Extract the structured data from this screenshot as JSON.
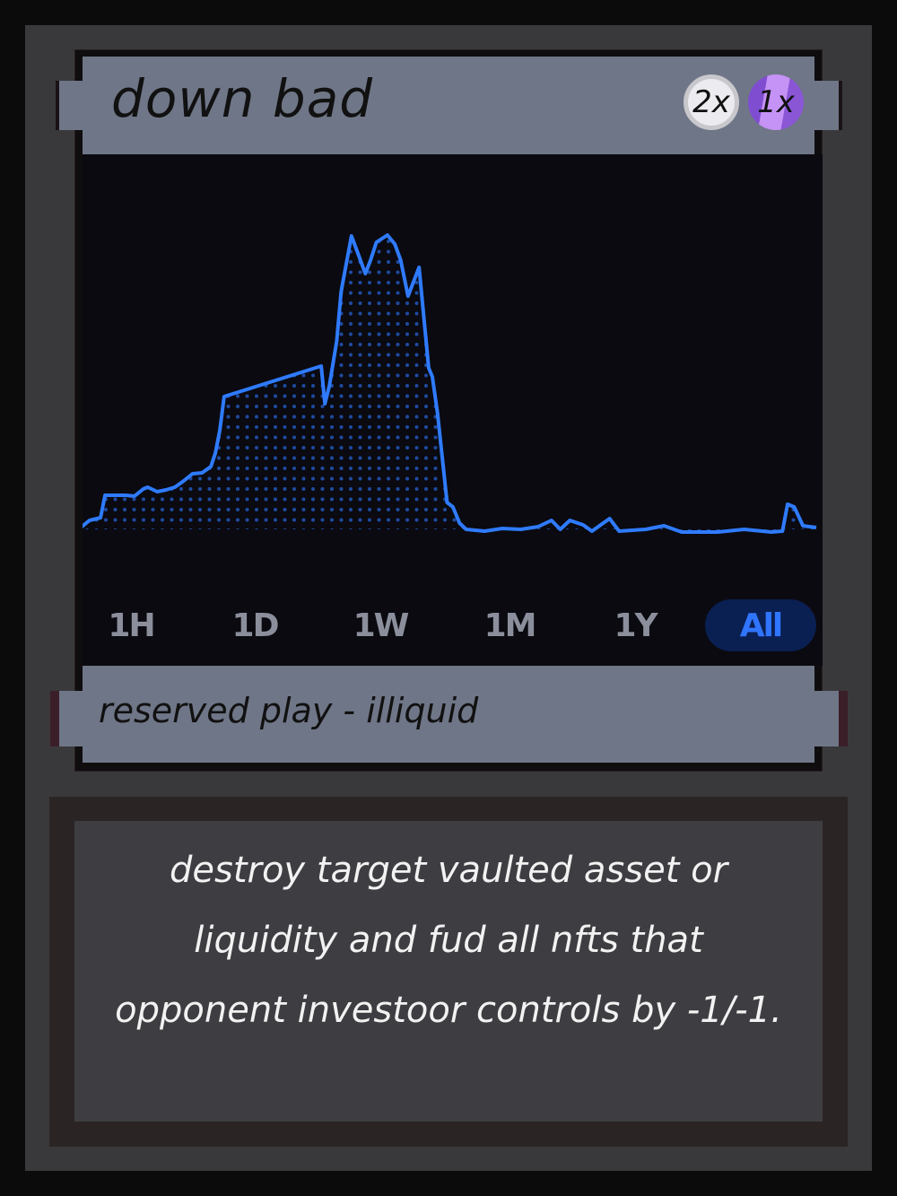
{
  "card": {
    "title": "down bad",
    "cost": [
      {
        "label": "2x",
        "type": "colorless",
        "color": "#ecebf0"
      },
      {
        "label": "1x",
        "type": "purple",
        "color": "#9b63e0"
      }
    ],
    "timeframes": [
      "1H",
      "1D",
      "1W",
      "1M",
      "1Y",
      "All"
    ],
    "selected_timeframe": "All",
    "type_line": "reserved play - illiquid",
    "rules_text": [
      "destroy target vaulted asset or",
      "liquidity and fud all nfts that",
      "opponent investoor controls by -1/-1."
    ]
  },
  "colors": {
    "line": "#2f7bff",
    "accent": "#3075ff",
    "bar": "#6f7687",
    "chart_bg": "#0a0a10"
  },
  "chart_data": {
    "type": "area",
    "title": "",
    "xlabel": "",
    "ylabel": "",
    "grid": false,
    "ylim": [
      -5,
      335
    ],
    "x": [
      0,
      1.2,
      2.7,
      3.3,
      6.1,
      7.3,
      8.5,
      9.1,
      10.4,
      11.6,
      12.8,
      14,
      15.2,
      16.5,
      17.7,
      18.3,
      18.9,
      19.5,
      32.7,
      33.2,
      33.8,
      34.8,
      35.4,
      36.8,
      37.8,
      38.7,
      39.4,
      40.2,
      41.7,
      42.7,
      43.5,
      44.5,
      46,
      47.3,
      47.8,
      48.5,
      49.8,
      50.6,
      51.5,
      52.4,
      54.9,
      57.3,
      59.8,
      62.2,
      64,
      65.2,
      66.5,
      68.3,
      69.5,
      71.9,
      73.2,
      76.8,
      79.3,
      81.7,
      86.6,
      90.2,
      93.9,
      95.4,
      96.1,
      97,
      98.2,
      100
    ],
    "values": [
      2,
      10,
      13,
      38,
      38,
      37,
      45,
      47,
      42,
      44,
      47,
      54,
      62,
      63,
      70,
      85,
      110,
      148,
      182,
      140,
      160,
      210,
      265,
      327,
      305,
      285,
      300,
      320,
      328,
      318,
      300,
      260,
      292,
      180,
      170,
      130,
      30,
      25,
      7,
      0,
      -2,
      1,
      0,
      3,
      10,
      0,
      10,
      5,
      -2,
      12,
      -2,
      0,
      4,
      -3,
      -3,
      0,
      -3,
      -2,
      28,
      25,
      4,
      2
    ]
  }
}
